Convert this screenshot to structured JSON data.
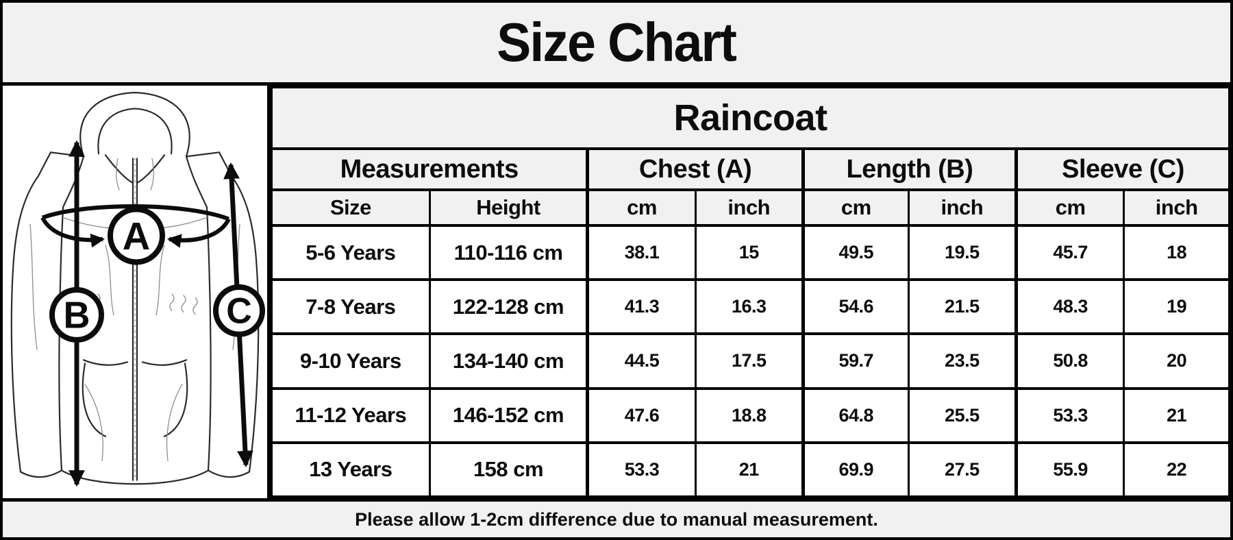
{
  "header": {
    "title": "Size Chart"
  },
  "chart_data": {
    "type": "table",
    "title": "Raincoat",
    "column_groups": [
      {
        "label": "Measurements",
        "span": 2
      },
      {
        "label": "Chest (A)",
        "span": 2
      },
      {
        "label": "Length (B)",
        "span": 2
      },
      {
        "label": "Sleeve (C)",
        "span": 2
      }
    ],
    "columns": [
      "Size",
      "Height",
      "cm",
      "inch",
      "cm",
      "inch",
      "cm",
      "inch"
    ],
    "rows": [
      [
        "5-6 Years",
        "110-116 cm",
        "38.1",
        "15",
        "49.5",
        "19.5",
        "45.7",
        "18"
      ],
      [
        "7-8 Years",
        "122-128 cm",
        "41.3",
        "16.3",
        "54.6",
        "21.5",
        "48.3",
        "19"
      ],
      [
        "9-10 Years",
        "134-140 cm",
        "44.5",
        "17.5",
        "59.7",
        "23.5",
        "50.8",
        "20"
      ],
      [
        "11-12 Years",
        "146-152 cm",
        "47.6",
        "18.8",
        "64.8",
        "25.5",
        "53.3",
        "21"
      ],
      [
        "13 Years",
        "158 cm",
        "53.3",
        "21",
        "69.9",
        "27.5",
        "55.9",
        "22"
      ]
    ]
  },
  "diagram": {
    "description": "line drawing of hooded raincoat with measurement arrows",
    "labels": [
      "A",
      "B",
      "C"
    ]
  },
  "footer": {
    "note": "Please allow 1-2cm difference due to manual measurement."
  },
  "colors": {
    "band_bg": "#f1f1f1",
    "cell_bg": "#ffffff",
    "border": "#000000",
    "text": "#0d0d0d"
  }
}
